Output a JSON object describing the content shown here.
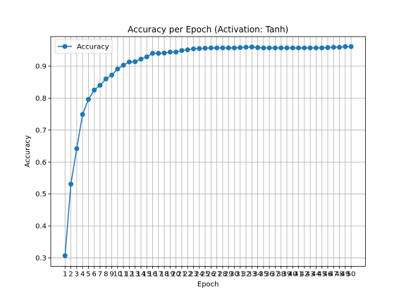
{
  "chart_data": {
    "type": "line",
    "title": "Accuracy per Epoch (Activation: Tanh)",
    "xlabel": "Epoch",
    "ylabel": "Accuracy",
    "x": [
      1,
      2,
      3,
      4,
      5,
      6,
      7,
      8,
      9,
      10,
      11,
      12,
      13,
      14,
      15,
      16,
      17,
      18,
      19,
      20,
      21,
      22,
      23,
      24,
      25,
      26,
      27,
      28,
      29,
      30,
      31,
      32,
      33,
      34,
      35,
      36,
      37,
      38,
      39,
      40,
      41,
      42,
      43,
      44,
      45,
      46,
      47,
      48,
      49,
      50
    ],
    "xticks": [
      "1",
      "2",
      "3",
      "4",
      "5",
      "6",
      "7",
      "8",
      "9",
      "10",
      "11",
      "12",
      "13",
      "14",
      "15",
      "16",
      "17",
      "18",
      "19",
      "20",
      "21",
      "22",
      "23",
      "24",
      "25",
      "26",
      "27",
      "28",
      "29",
      "30",
      "31",
      "32",
      "33",
      "34",
      "35",
      "36",
      "37",
      "38",
      "39",
      "40",
      "41",
      "42",
      "43",
      "44",
      "45",
      "46",
      "47",
      "48",
      "49",
      "50"
    ],
    "yticks": [
      "0.3",
      "0.4",
      "0.5",
      "0.6",
      "0.7",
      "0.8",
      "0.9"
    ],
    "ytick_values": [
      0.3,
      0.4,
      0.5,
      0.6,
      0.7,
      0.8,
      0.9
    ],
    "xlim": [
      -1.45,
      52.45
    ],
    "ylim": [
      0.2739,
      0.9924
    ],
    "grid": true,
    "legend_position": "upper-left",
    "series": [
      {
        "name": "Accuracy",
        "color": "#1f77b4",
        "marker": "circle",
        "values": [
          0.307,
          0.531,
          0.642,
          0.749,
          0.796,
          0.825,
          0.84,
          0.86,
          0.872,
          0.891,
          0.903,
          0.913,
          0.914,
          0.922,
          0.929,
          0.94,
          0.94,
          0.941,
          0.944,
          0.944,
          0.949,
          0.951,
          0.954,
          0.955,
          0.956,
          0.957,
          0.957,
          0.957,
          0.957,
          0.957,
          0.958,
          0.959,
          0.96,
          0.958,
          0.957,
          0.957,
          0.957,
          0.957,
          0.957,
          0.957,
          0.957,
          0.957,
          0.957,
          0.957,
          0.957,
          0.958,
          0.959,
          0.959,
          0.961,
          0.961
        ]
      }
    ]
  }
}
